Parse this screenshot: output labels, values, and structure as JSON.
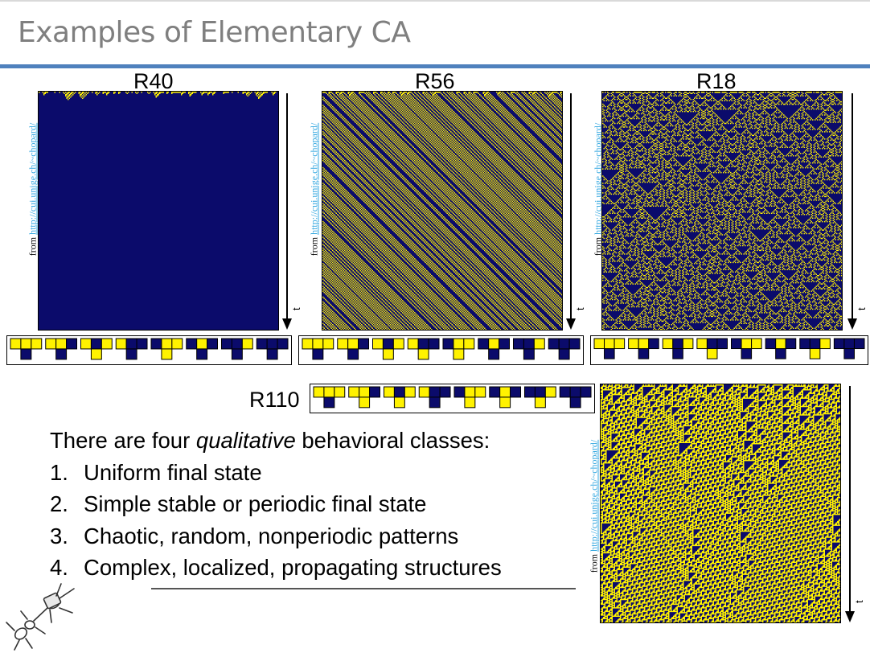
{
  "slide": {
    "title": "Examples of Elementary CA"
  },
  "colors": {
    "title_rule": "#4f81bd",
    "cell_on": "#fff200",
    "cell_off": "#0b0b6b",
    "grid_on": "#9a9a1e",
    "grid_off": "#1a1a72",
    "link": "#35a8e0"
  },
  "credit": {
    "prefix": "from ",
    "link": "http://cui.unige.ch/~chopard/"
  },
  "time_axis_label": "t",
  "rules": [
    {
      "id": "r40",
      "label": "R40",
      "number": 40,
      "density": 0.5
    },
    {
      "id": "r56",
      "label": "R56",
      "number": 56,
      "density": 0.5
    },
    {
      "id": "r18",
      "label": "R18",
      "number": 18,
      "density": 0.5
    },
    {
      "id": "r110",
      "label": "R110",
      "number": 110,
      "density": 0.5
    }
  ],
  "text": {
    "intro_prefix": "There are four ",
    "intro_emph": "qualitative",
    "intro_suffix": " behavioral classes:",
    "items": [
      {
        "num": "1.",
        "text": "Uniform final state"
      },
      {
        "num": "2.",
        "text": "Simple stable or periodic final state"
      },
      {
        "num": "3.",
        "text": "Chaotic, random, nonperiodic patterns"
      },
      {
        "num": "4.",
        "text": "Complex, localized, propagating structures"
      }
    ]
  }
}
